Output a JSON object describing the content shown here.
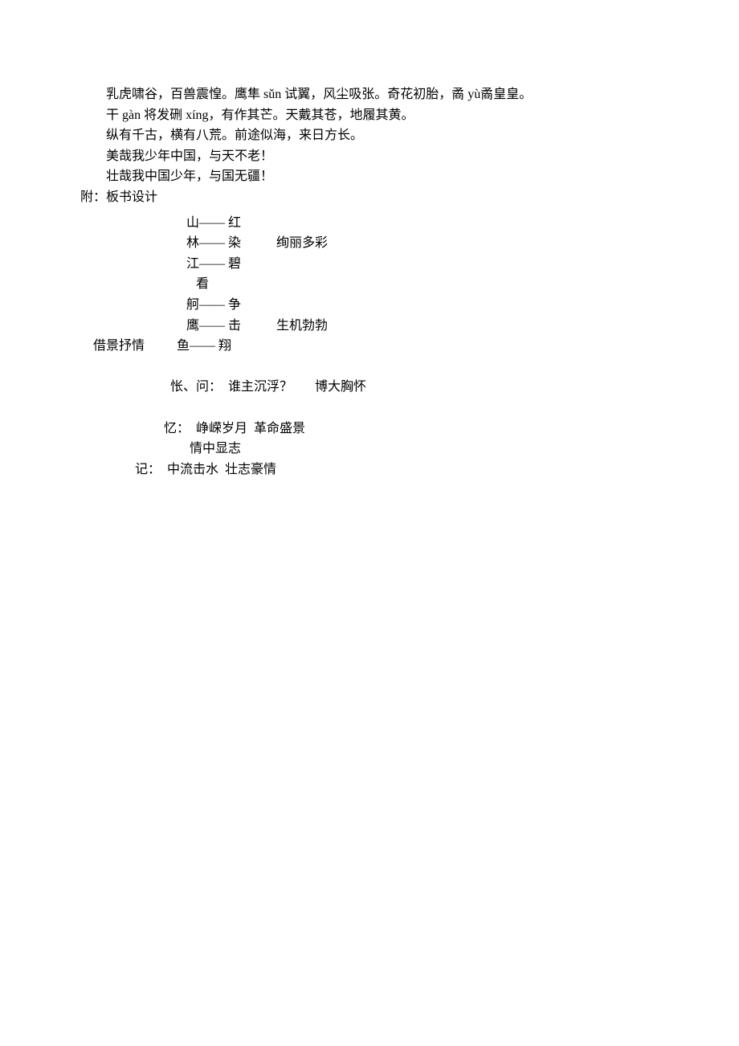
{
  "paragraphs": {
    "p1": "乳虎啸谷，百兽震惶。鹰隼 sǔn 试翼，风尘吸张。奇花初胎，矞 yù矞皇皇。",
    "p2": "干 gàn 将发硎 xíng，有作其芒。天戴其苍，地履其黄。",
    "p3": "纵有千古，横有八荒。前途似海，来日方长。",
    "p4": "美哉我少年中国，与天不老！",
    "p5": "壮哉我中国少年，与国无疆！"
  },
  "appendix_label": "附：板书设计",
  "diagram": {
    "left_label": "借景抒情",
    "pairs": {
      "shan": "山—— 红",
      "lin": "林—— 染",
      "jiang": "江—— 碧",
      "kan": "看",
      "ge": "舸—— 争",
      "ying": "鹰—— 击",
      "yu": "鱼—— 翔"
    },
    "right_labels": {
      "xuanlicolor": "绚丽多彩",
      "shengjibobo": "生机勃勃"
    },
    "middle_section": {
      "chang_wen": "怅、问：  谁主沉浮？",
      "boda": "博大胸怀"
    },
    "bottom_section": {
      "yi": "忆：  峥嵘岁月  革命盛景",
      "qingzhong": "情中显志",
      "ji": "记：  中流击水  壮志豪情"
    }
  },
  "styles": {
    "background_color": "#ffffff",
    "text_color": "#000000",
    "font_size": 16,
    "font_family": "SimSun"
  }
}
